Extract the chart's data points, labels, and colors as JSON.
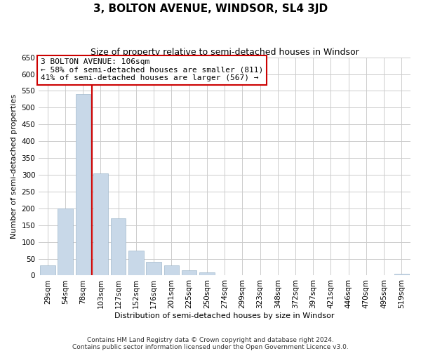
{
  "title": "3, BOLTON AVENUE, WINDSOR, SL4 3JD",
  "subtitle": "Size of property relative to semi-detached houses in Windsor",
  "xlabel": "Distribution of semi-detached houses by size in Windsor",
  "ylabel": "Number of semi-detached properties",
  "categories": [
    "29sqm",
    "54sqm",
    "78sqm",
    "103sqm",
    "127sqm",
    "152sqm",
    "176sqm",
    "201sqm",
    "225sqm",
    "250sqm",
    "274sqm",
    "299sqm",
    "323sqm",
    "348sqm",
    "372sqm",
    "397sqm",
    "421sqm",
    "446sqm",
    "470sqm",
    "495sqm",
    "519sqm"
  ],
  "values": [
    30,
    200,
    540,
    305,
    170,
    75,
    40,
    30,
    15,
    10,
    2,
    0,
    0,
    0,
    0,
    0,
    0,
    0,
    0,
    0,
    5
  ],
  "bar_color": "#c8d8e8",
  "bar_edge_color": "#a0b8cc",
  "vline_color": "#cc0000",
  "vline_x": 2.5,
  "annotation_title": "3 BOLTON AVENUE: 106sqm",
  "annotation_line1": "← 58% of semi-detached houses are smaller (811)",
  "annotation_line2": "41% of semi-detached houses are larger (567) →",
  "annotation_box_color": "#ffffff",
  "annotation_box_edge": "#cc0000",
  "ylim": [
    0,
    650
  ],
  "yticks": [
    0,
    50,
    100,
    150,
    200,
    250,
    300,
    350,
    400,
    450,
    500,
    550,
    600,
    650
  ],
  "footnote1": "Contains HM Land Registry data © Crown copyright and database right 2024.",
  "footnote2": "Contains public sector information licensed under the Open Government Licence v3.0.",
  "background_color": "#ffffff",
  "grid_color": "#cccccc",
  "title_fontsize": 11,
  "subtitle_fontsize": 9,
  "axis_label_fontsize": 8,
  "tick_fontsize": 7.5,
  "annotation_fontsize": 8,
  "footnote_fontsize": 6.5
}
